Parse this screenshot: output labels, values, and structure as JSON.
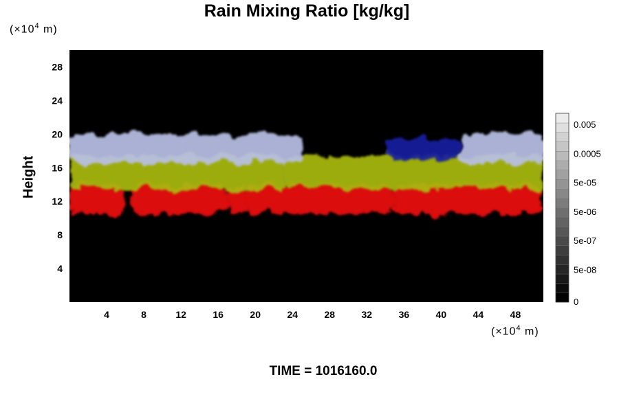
{
  "chart_data": {
    "type": "heatmap",
    "title": "Rain Mixing Ratio [kg/kg]",
    "ylabel": "Height",
    "xlabel": "",
    "y_unit": {
      "prefix": "(×10",
      "exp": "4",
      "suffix": " m)"
    },
    "x_unit": {
      "prefix": "(×10",
      "exp": "4",
      "suffix": " m)"
    },
    "xlim": [
      0,
      51
    ],
    "ylim": [
      0,
      30
    ],
    "xticks": [
      4,
      8,
      12,
      16,
      20,
      24,
      28,
      32,
      36,
      40,
      44,
      48
    ],
    "yticks": [
      4,
      8,
      12,
      16,
      20,
      24,
      28
    ],
    "colorbar": {
      "labels": [
        "0",
        "5e-08",
        "5e-07",
        "5e-06",
        "5e-05",
        "0.0005",
        "0.005"
      ],
      "levels": 20
    },
    "layers": [
      {
        "color": "#ee1111",
        "band": [
          10.5,
          14
        ],
        "spans": [
          [
            0,
            6
          ],
          [
            6.5,
            17
          ],
          [
            17,
            19
          ],
          [
            19,
            35
          ],
          [
            35,
            51
          ]
        ]
      },
      {
        "color": "#aabb11",
        "band": [
          13.5,
          17.5
        ],
        "spans": [
          [
            0,
            23
          ],
          [
            23,
            51
          ]
        ]
      },
      {
        "color": "#b8c0e6",
        "band": [
          16.5,
          20
        ],
        "spans": [
          [
            0,
            25
          ],
          [
            42,
            51
          ]
        ]
      },
      {
        "color": "#1a1fa0",
        "band": [
          17,
          19.5
        ],
        "spans": [
          [
            34,
            42
          ]
        ]
      }
    ]
  },
  "footer": {
    "time_label": "TIME = 1016160.0"
  }
}
